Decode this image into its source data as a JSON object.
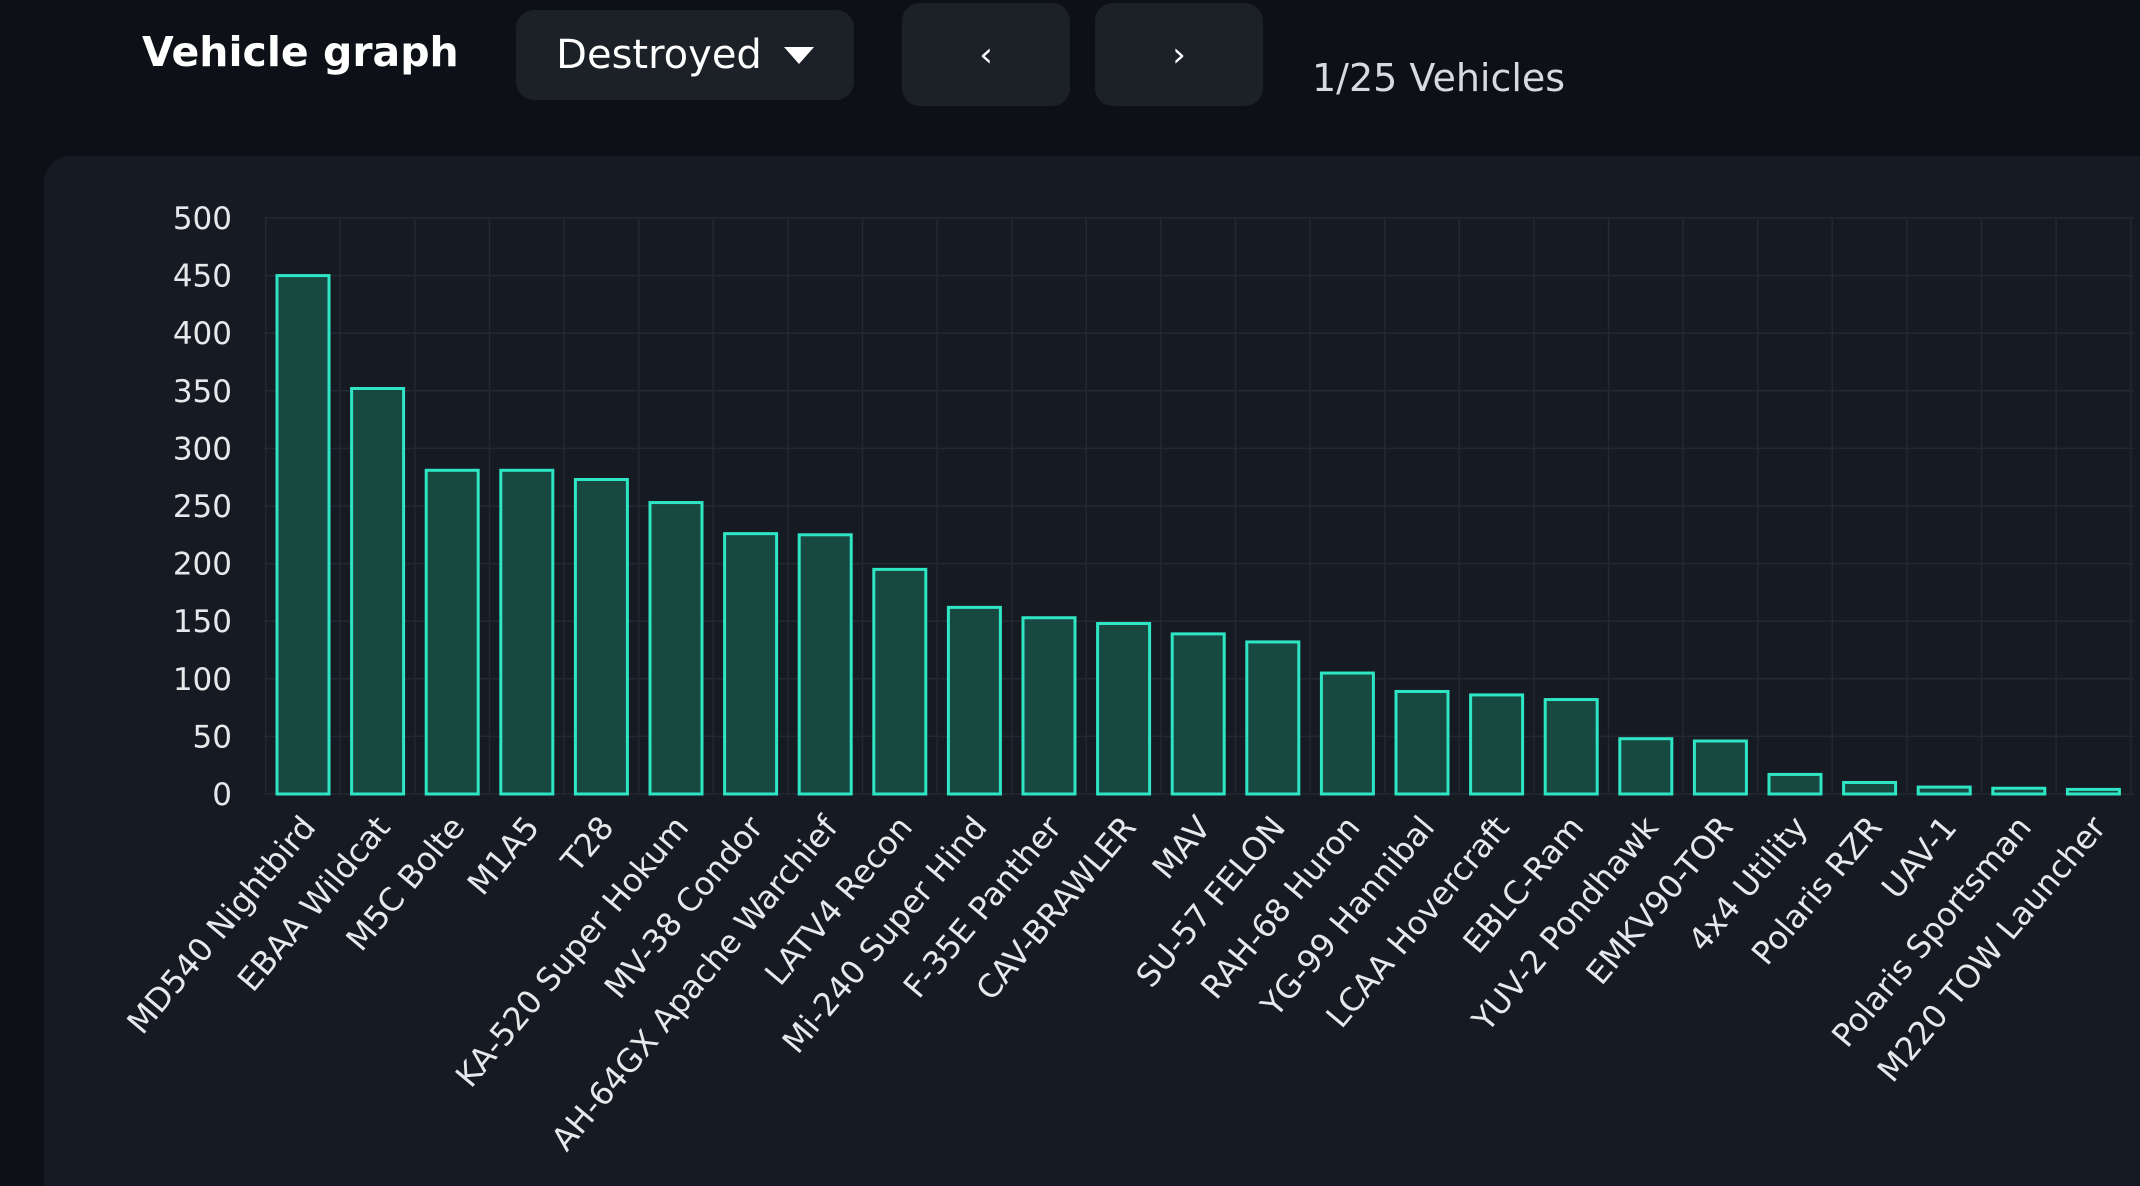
{
  "header": {
    "title": "Vehicle graph",
    "dropdown": {
      "selected": "Destroyed"
    },
    "prev_label": "‹",
    "next_label": "›",
    "page_count": "1/25 Vehicles"
  },
  "colors": {
    "background": "#0d1016",
    "panel": "#161a22",
    "button": "#1c2027",
    "bar_fill": "#174941",
    "bar_stroke": "#2ee6c4",
    "grid": "#232833",
    "text": "#e6e8ec"
  },
  "chart_data": {
    "type": "bar",
    "categories": [
      "MD540 Nightbird",
      "EBAA Wildcat",
      "M5C Bolte",
      "M1A5",
      "T28",
      "KA-520 Super Hokum",
      "MV-38 Condor",
      "AH-64GX Apache Warchief",
      "LATV4 Recon",
      "Mi-240 Super Hind",
      "F-35E Panther",
      "CAV-BRAWLER",
      "MAV",
      "SU-57 FELON",
      "RAH-68 Huron",
      "YG-99 Hannibal",
      "LCAA Hovercraft",
      "EBLC-Ram",
      "YUV-2 Pondhawk",
      "EMKV90-TOR",
      "4x4 Utility",
      "Polaris RZR",
      "UAV-1",
      "Polaris Sportsman",
      "M220 TOW Launcher"
    ],
    "values": [
      450,
      352,
      281,
      281,
      273,
      253,
      226,
      225,
      195,
      162,
      153,
      148,
      139,
      132,
      105,
      89,
      86,
      82,
      48,
      46,
      17,
      10,
      6,
      5,
      4
    ],
    "yticks": [
      0,
      50,
      100,
      150,
      200,
      250,
      300,
      350,
      400,
      450,
      500
    ],
    "ylim": [
      0,
      500
    ],
    "grid": true,
    "legend": "none"
  }
}
